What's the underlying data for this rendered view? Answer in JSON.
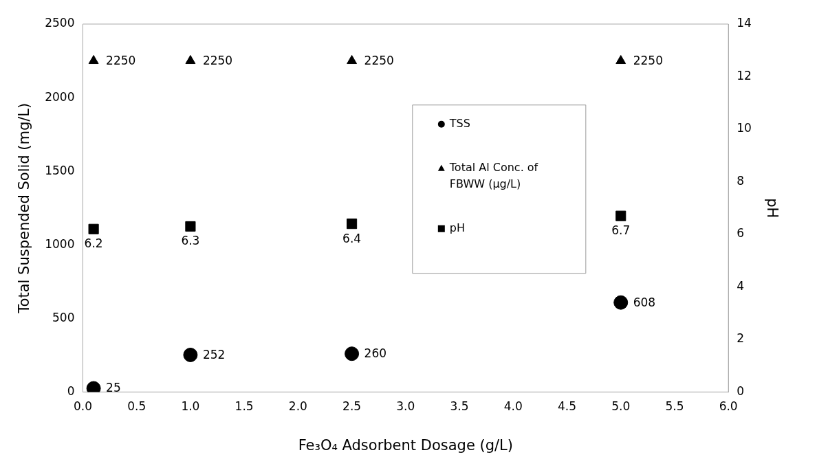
{
  "chart_data": {
    "type": "scatter",
    "xlabel": "Fe₃O₄ Adsorbent Dosage (g/L)",
    "ylabel": "Total Suspended Solid (mg/L)",
    "y2label": "pH",
    "x": [
      0.1,
      1.0,
      2.5,
      5.0
    ],
    "series": [
      {
        "name": "TSS",
        "color": "#000000",
        "marker": "circle",
        "values": [
          25,
          252,
          260,
          608
        ]
      },
      {
        "name": "Total Al Conc. of FBWW (μg/L)",
        "color": "#000000",
        "marker": "triangle",
        "values": [
          2250,
          2250,
          2250,
          2250
        ]
      },
      {
        "name": "pH",
        "color": "#000000",
        "marker": "square",
        "axis": "y2",
        "values": [
          6.2,
          6.3,
          6.4,
          6.7
        ]
      }
    ],
    "xlim": [
      0,
      6
    ],
    "xticks": [
      {
        "value": 0,
        "label": "0.0"
      },
      {
        "value": 0.5,
        "label": "0.5"
      },
      {
        "value": 1,
        "label": "1.0"
      },
      {
        "value": 1.5,
        "label": "1.5"
      },
      {
        "value": 2,
        "label": "2.0"
      },
      {
        "value": 2.5,
        "label": "2.5"
      },
      {
        "value": 3,
        "label": "3.0"
      },
      {
        "value": 3.5,
        "label": "3.5"
      },
      {
        "value": 4,
        "label": "4.0"
      },
      {
        "value": 4.5,
        "label": "4.5"
      },
      {
        "value": 5,
        "label": "5.0"
      },
      {
        "value": 5.5,
        "label": "5.5"
      },
      {
        "value": 6,
        "label": "6.0"
      }
    ],
    "ylim": [
      0,
      2500
    ],
    "yticks": [
      0,
      500,
      1000,
      1500,
      2000,
      2500
    ],
    "y2lim": [
      0,
      14
    ],
    "y2ticks": [
      0,
      2,
      4,
      6,
      8,
      10,
      12,
      14
    ],
    "grid": false,
    "legend": "center",
    "data_labels": true
  }
}
